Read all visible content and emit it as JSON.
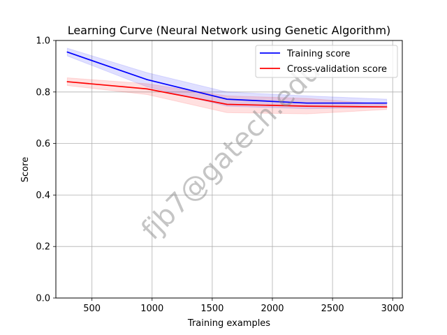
{
  "chart_data": {
    "type": "line",
    "title": "Learning Curve (Neural Network using Genetic Algorithm)",
    "xlabel": "Training examples",
    "ylabel": "Score",
    "xlim": [
      200,
      3080
    ],
    "ylim": [
      0.0,
      1.0
    ],
    "x_ticks": [
      500,
      1000,
      1500,
      2000,
      2500,
      3000
    ],
    "y_ticks": [
      "0.0",
      "0.2",
      "0.4",
      "0.6",
      "0.8",
      "1.0"
    ],
    "grid": true,
    "legend_position": "top-right",
    "x": [
      295,
      958,
      1622,
      2286,
      2950
    ],
    "series": [
      {
        "name": "Training score",
        "color": "#0000ff",
        "values": [
          0.955,
          0.848,
          0.772,
          0.757,
          0.757
        ],
        "band_lower": [
          0.94,
          0.82,
          0.745,
          0.735,
          0.74
        ],
        "band_upper": [
          0.97,
          0.875,
          0.8,
          0.785,
          0.772
        ]
      },
      {
        "name": "Cross-validation score",
        "color": "#ff0000",
        "values": [
          0.84,
          0.812,
          0.752,
          0.745,
          0.742
        ],
        "band_lower": [
          0.825,
          0.79,
          0.72,
          0.715,
          0.732
        ],
        "band_upper": [
          0.855,
          0.832,
          0.785,
          0.775,
          0.752
        ]
      }
    ],
    "watermark": "fjb7@gatech.edu"
  }
}
